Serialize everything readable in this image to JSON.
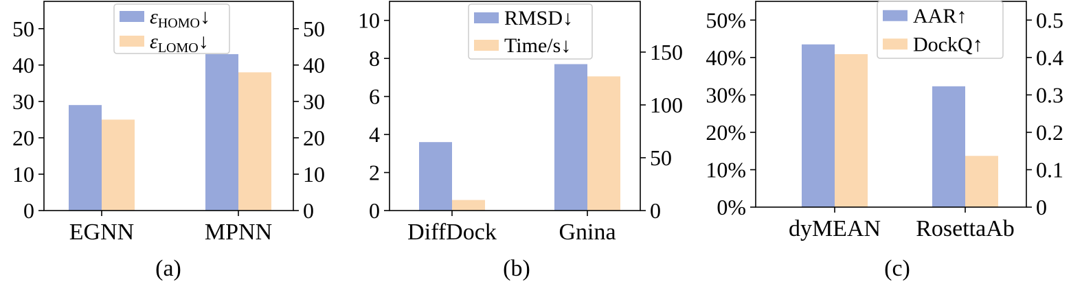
{
  "colors": {
    "primary": "#97a8db",
    "secondary": "#fbd8b0"
  },
  "chart_data": [
    {
      "type": "bar",
      "caption": "(a)",
      "categories": [
        "EGNN",
        "MPNN"
      ],
      "series": [
        {
          "name": "ε_HOMO↓",
          "legend_main": "ε",
          "legend_sub": "HOMO",
          "legend_arrow": "↓",
          "axis": "left",
          "values": [
            29,
            43
          ]
        },
        {
          "name": "ε_LOMO↓",
          "legend_main": "ε",
          "legend_sub": "LOMO",
          "legend_arrow": "↓",
          "axis": "right",
          "values": [
            25,
            38
          ]
        }
      ],
      "left_axis": {
        "ylim": [
          0,
          57.5
        ],
        "ticks": [
          0,
          10,
          20,
          30,
          40,
          50
        ],
        "tick_labels": [
          "0",
          "10",
          "20",
          "30",
          "40",
          "50"
        ]
      },
      "right_axis": {
        "ylim": [
          0,
          57.5
        ],
        "ticks": [
          0,
          10,
          20,
          30,
          40,
          50
        ],
        "tick_labels": [
          "0",
          "10",
          "20",
          "30",
          "40",
          "50"
        ]
      },
      "legend_position": "top-center"
    },
    {
      "type": "bar",
      "caption": "(b)",
      "categories": [
        "DiffDock",
        "Gnina"
      ],
      "series": [
        {
          "name": "RMSD↓",
          "legend_main": "RMSD",
          "legend_sub": "",
          "legend_arrow": "↓",
          "axis": "left",
          "values": [
            3.6,
            7.7
          ]
        },
        {
          "name": "Time/s↓",
          "legend_main": "Time/s",
          "legend_sub": "",
          "legend_arrow": "↓",
          "axis": "right",
          "values": [
            10,
            127
          ]
        }
      ],
      "left_axis": {
        "ylim": [
          0,
          11
        ],
        "ticks": [
          0,
          2,
          4,
          6,
          8,
          10
        ],
        "tick_labels": [
          "0",
          "2",
          "4",
          "6",
          "8",
          "10"
        ]
      },
      "right_axis": {
        "ylim": [
          0,
          198
        ],
        "ticks": [
          0,
          50,
          100,
          150
        ],
        "tick_labels": [
          "0",
          "50",
          "100",
          "150"
        ]
      },
      "legend_position": "top-center"
    },
    {
      "type": "bar",
      "caption": "(c)",
      "categories": [
        "dyMEAN",
        "RosettaAb"
      ],
      "series": [
        {
          "name": "AAR↑",
          "legend_main": "AAR",
          "legend_sub": "",
          "legend_arrow": "↑",
          "axis": "left",
          "values": [
            43.5,
            32.3
          ]
        },
        {
          "name": "DockQ↑",
          "legend_main": "DockQ",
          "legend_sub": "",
          "legend_arrow": "↑",
          "axis": "right",
          "values": [
            0.409,
            0.137
          ]
        }
      ],
      "left_axis": {
        "ylim": [
          0,
          55
        ],
        "ticks": [
          0,
          10,
          20,
          30,
          40,
          50
        ],
        "tick_labels": [
          "0%",
          "10%",
          "20%",
          "30%",
          "40%",
          "50%"
        ]
      },
      "right_axis": {
        "ylim": [
          0,
          0.55
        ],
        "ticks": [
          0,
          0.1,
          0.2,
          0.3,
          0.4,
          0.5
        ],
        "tick_labels": [
          "0",
          "0.1",
          "0.2",
          "0.3",
          "0.4",
          "0.5"
        ]
      },
      "legend_position": "top-right"
    }
  ]
}
